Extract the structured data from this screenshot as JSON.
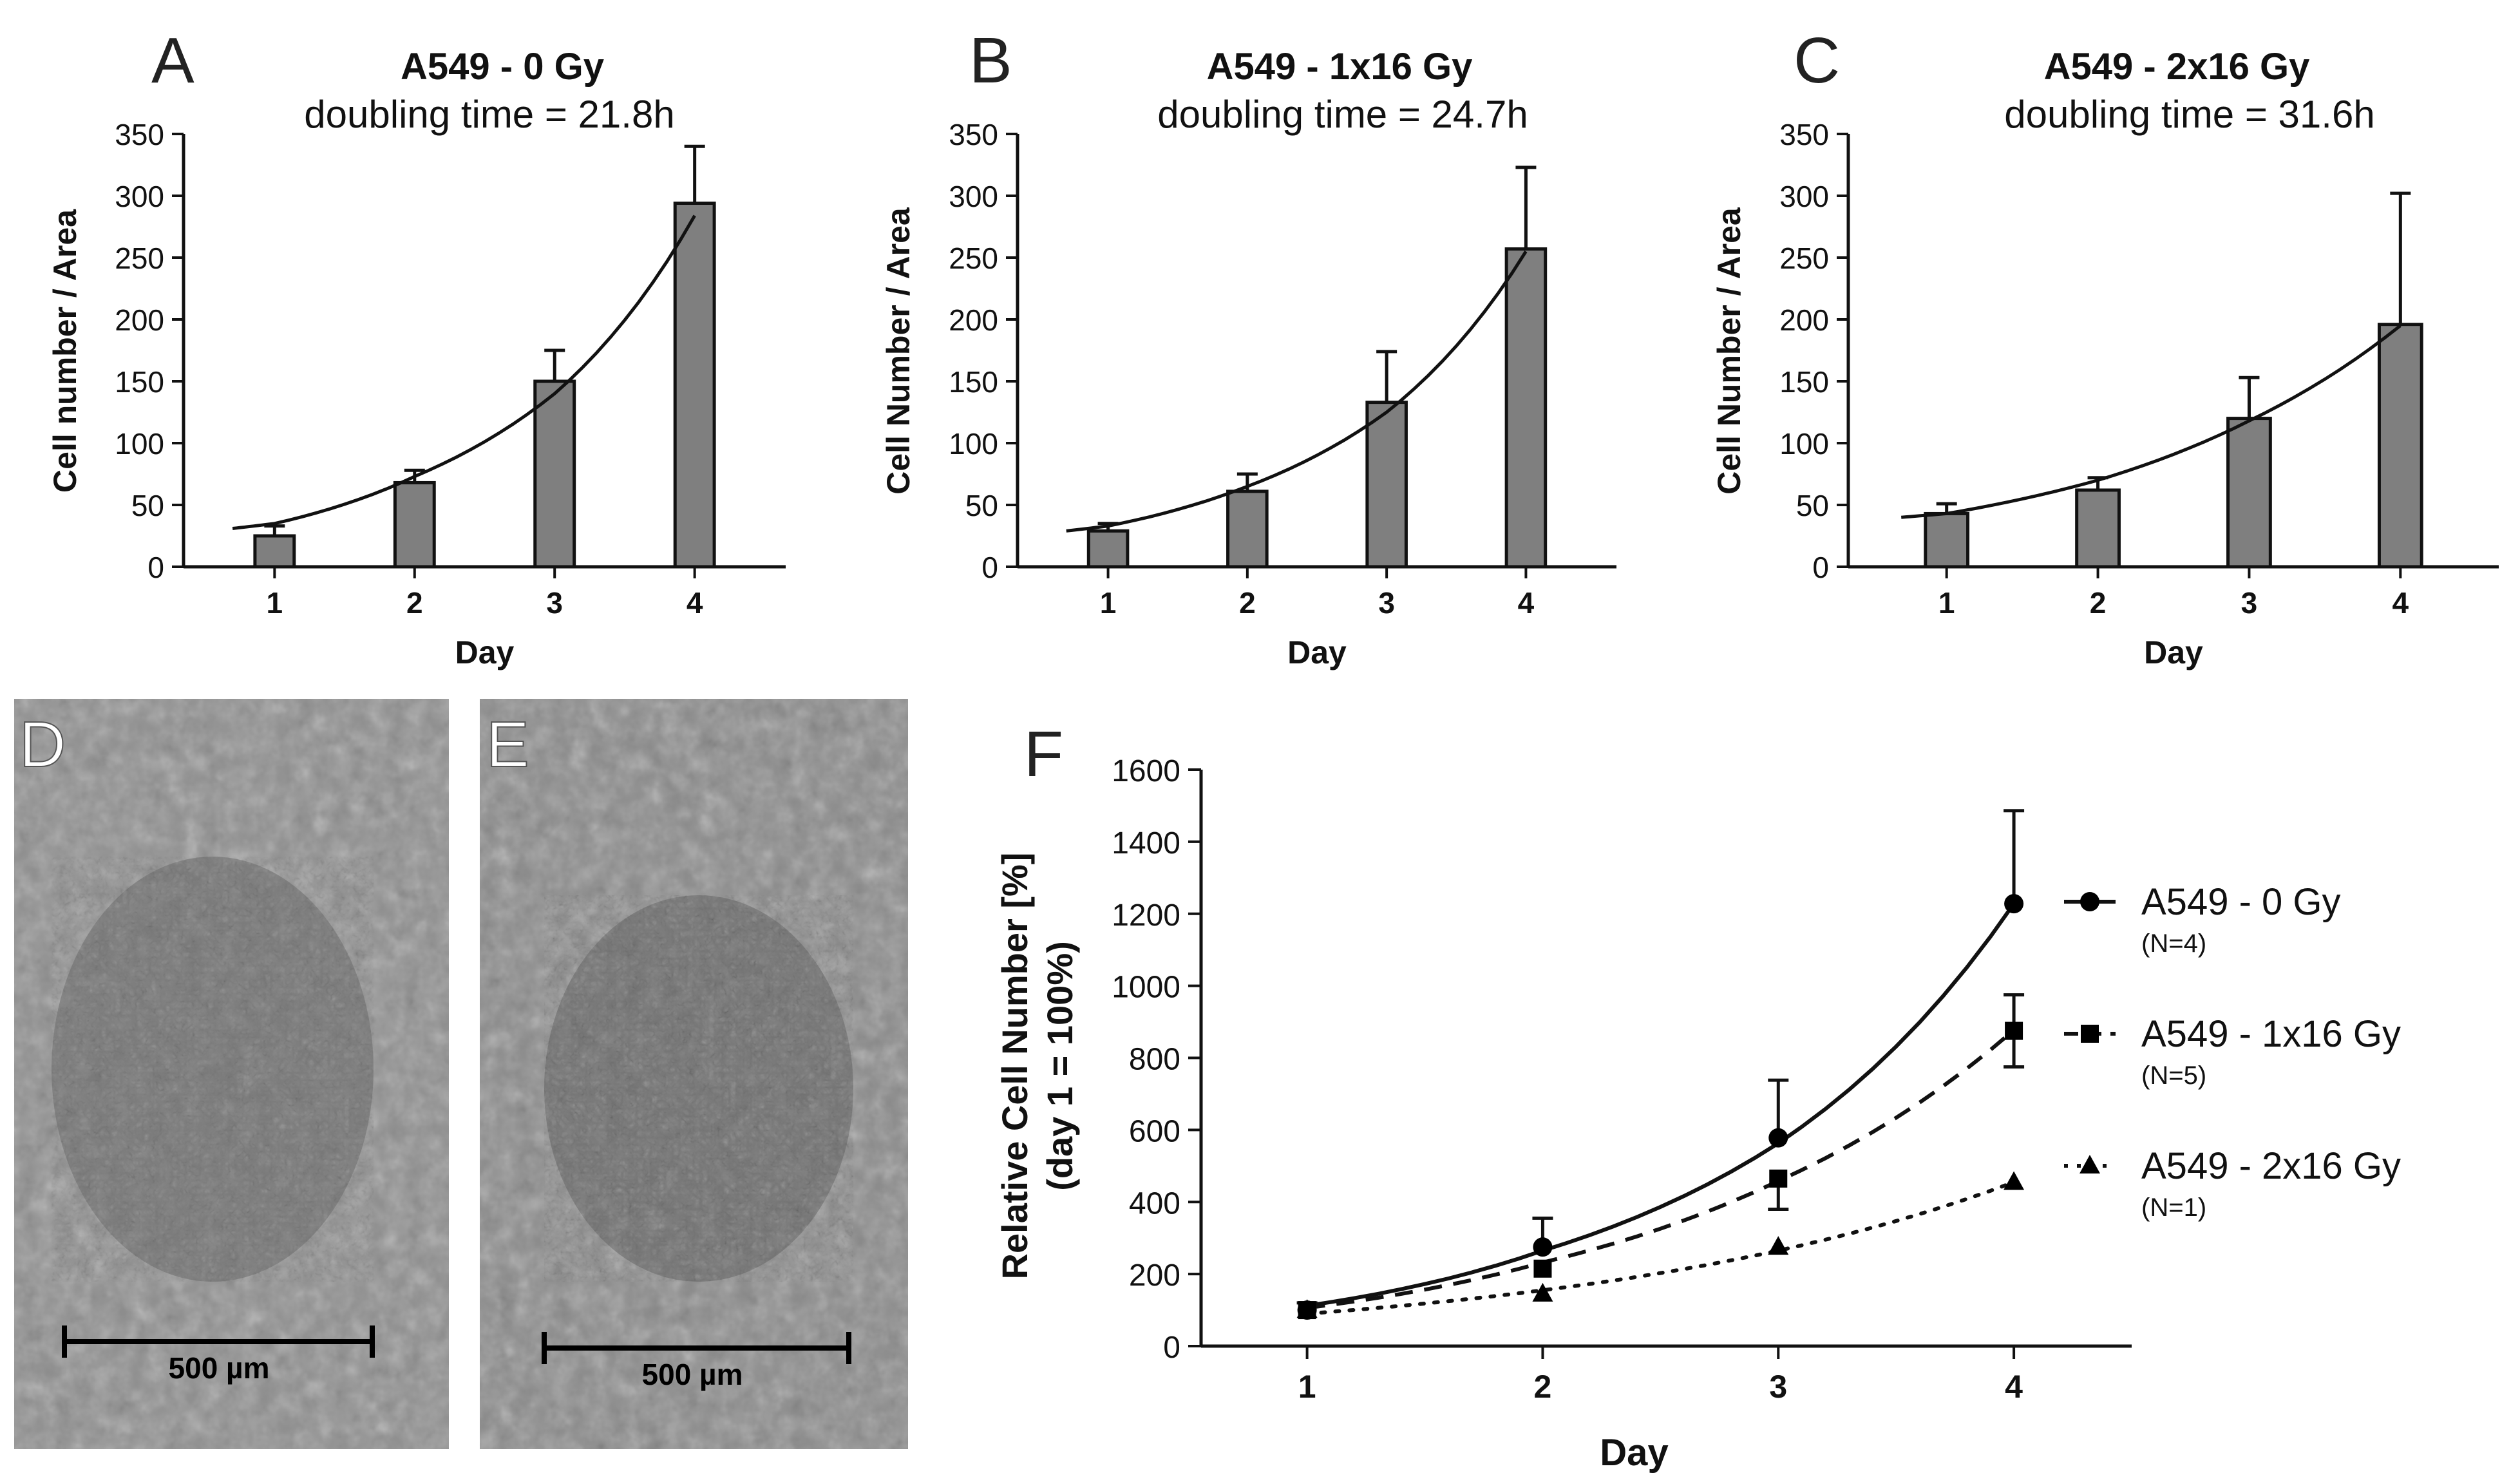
{
  "panels": {
    "A": {
      "letter": "A",
      "title": "A549 - 0 Gy",
      "subtitle": "doubling time = 21.8h"
    },
    "B": {
      "letter": "B",
      "title": "A549 - 1x16 Gy",
      "subtitle": "doubling time = 24.7h"
    },
    "C": {
      "letter": "C",
      "title": "A549 - 2x16 Gy",
      "subtitle": "doubling time = 31.6h"
    },
    "D": {
      "letter": "D",
      "scalebar_label": "500 µm"
    },
    "E": {
      "letter": "E",
      "scalebar_label": "500 µm"
    },
    "F": {
      "letter": "F"
    }
  },
  "chart_data": [
    {
      "panel": "A",
      "type": "bar",
      "title": "A549 - 0 Gy",
      "subtitle": "doubling time = 21.8h",
      "xlabel": "Day",
      "ylabel": "Cell number / Area",
      "categories": [
        "1",
        "2",
        "3",
        "4"
      ],
      "values": [
        25,
        68,
        150,
        294
      ],
      "error_upper": [
        8,
        10,
        25,
        46
      ],
      "fit_curve": [
        [
          0.7,
          31
        ],
        [
          1,
          35
        ],
        [
          2,
          73
        ],
        [
          3,
          140
        ],
        [
          4,
          284
        ]
      ],
      "ylim": [
        0,
        350
      ],
      "yticks": [
        0,
        50,
        100,
        150,
        200,
        250,
        300,
        350
      ]
    },
    {
      "panel": "B",
      "type": "bar",
      "title": "A549 - 1x16 Gy",
      "subtitle": "doubling time = 24.7h",
      "xlabel": "Day",
      "ylabel": "Cell Number / Area",
      "categories": [
        "1",
        "2",
        "3",
        "4"
      ],
      "values": [
        29,
        61,
        133,
        257
      ],
      "error_upper": [
        6,
        14,
        41,
        66
      ],
      "fit_curve": [
        [
          0.7,
          29
        ],
        [
          1,
          33
        ],
        [
          2,
          65
        ],
        [
          3,
          125
        ],
        [
          4,
          255
        ]
      ],
      "ylim": [
        0,
        350
      ],
      "yticks": [
        0,
        50,
        100,
        150,
        200,
        250,
        300,
        350
      ]
    },
    {
      "panel": "C",
      "type": "bar",
      "title": "A549 - 2x16 Gy",
      "subtitle": "doubling time = 31.6h",
      "xlabel": "Day",
      "ylabel": "Cell Number / Area",
      "categories": [
        "1",
        "2",
        "3",
        "4"
      ],
      "values": [
        43,
        62,
        120,
        196
      ],
      "error_upper": [
        8,
        10,
        33,
        106
      ],
      "fit_curve": [
        [
          0.7,
          40
        ],
        [
          1,
          43
        ],
        [
          2,
          70
        ],
        [
          3,
          118
        ],
        [
          4,
          195
        ]
      ],
      "ylim": [
        0,
        350
      ],
      "yticks": [
        0,
        50,
        100,
        150,
        200,
        250,
        300,
        350
      ]
    },
    {
      "panel": "F",
      "type": "line",
      "xlabel": "Day",
      "ylabel": "Relative Cell Number [%]",
      "ylabel_line2": "(day 1 = 100%)",
      "x": [
        1,
        2,
        3,
        4
      ],
      "xlim": [
        0.55,
        4.5
      ],
      "ylim": [
        0,
        1600
      ],
      "yticks": [
        0,
        200,
        400,
        600,
        800,
        1000,
        1200,
        1400,
        1600
      ],
      "series": [
        {
          "name": "A549 - 0 Gy",
          "n_label": "(N=4)",
          "marker": "circle",
          "line": "solid",
          "values": [
            100,
            275,
            578,
            1228
          ],
          "error_upper": [
            20,
            80,
            160,
            258
          ],
          "error_lower": [
            0,
            0,
            0,
            0
          ],
          "fit": [
            112,
            265,
            563,
            1228
          ]
        },
        {
          "name": "A549 - 1x16 Gy",
          "n_label": "(N=5)",
          "marker": "square",
          "line": "dashed",
          "values": [
            100,
            215,
            465,
            875
          ],
          "error_upper": [
            0,
            0,
            0,
            100
          ],
          "error_lower": [
            0,
            0,
            85,
            100
          ],
          "fit": [
            106,
            232,
            458,
            877
          ]
        },
        {
          "name": "A549 - 2x16 Gy",
          "n_label": "(N=1)",
          "marker": "triangle",
          "line": "dotted",
          "values": [
            100,
            145,
            275,
            455
          ],
          "error_upper": [
            0,
            0,
            0,
            0
          ],
          "error_lower": [
            0,
            0,
            0,
            0
          ],
          "fit": [
            90,
            155,
            265,
            455
          ]
        }
      ]
    }
  ]
}
